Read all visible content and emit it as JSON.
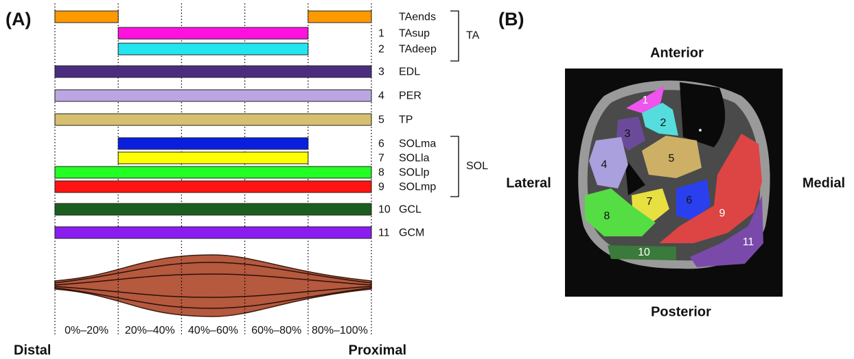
{
  "panel_a": {
    "label": "(A)",
    "rows": [
      {
        "name": "TAends",
        "segments": [
          [
            0,
            20
          ],
          [
            80,
            100
          ]
        ],
        "color": "#ff9900"
      },
      {
        "number": "1",
        "name": "TAsup",
        "segments": [
          [
            20,
            80
          ]
        ],
        "color": "#ff11dd"
      },
      {
        "number": "2",
        "name": "TAdeep",
        "segments": [
          [
            20,
            80
          ]
        ],
        "color": "#22e5f0"
      },
      {
        "number": "3",
        "name": "EDL",
        "segments": [
          [
            0,
            100
          ]
        ],
        "color": "#4b2d7f"
      },
      {
        "number": "4",
        "name": "PER",
        "segments": [
          [
            0,
            100
          ]
        ],
        "color": "#bba6e2"
      },
      {
        "number": "5",
        "name": "TP",
        "segments": [
          [
            0,
            100
          ]
        ],
        "color": "#d6bf6e"
      },
      {
        "number": "6",
        "name": "SOLma",
        "segments": [
          [
            20,
            80
          ]
        ],
        "color": "#0a1ee0"
      },
      {
        "number": "7",
        "name": "SOLla",
        "segments": [
          [
            20,
            80
          ]
        ],
        "color": "#ffff00"
      },
      {
        "number": "8",
        "name": "SOLlp",
        "segments": [
          [
            0,
            100
          ]
        ],
        "color": "#22ff22"
      },
      {
        "number": "9",
        "name": "SOLmp",
        "segments": [
          [
            0,
            100
          ]
        ],
        "color": "#ff1414"
      },
      {
        "number": "10",
        "name": "GCL",
        "segments": [
          [
            0,
            100
          ]
        ],
        "color": "#1b5e20"
      },
      {
        "number": "11",
        "name": "GCM",
        "segments": [
          [
            0,
            100
          ]
        ],
        "color": "#8a1cf0"
      }
    ],
    "groups": [
      "TA",
      "SOL"
    ],
    "gridlines": [
      0,
      20,
      40,
      60,
      80,
      100
    ],
    "axis_labels": [
      "0%–20%",
      "20%–40%",
      "40%–60%",
      "60%–80%",
      "80%–100%"
    ],
    "ends": [
      "Distal",
      "Proximal"
    ]
  },
  "panel_b": {
    "label": "(B)",
    "anterior": "Anterior",
    "posterior": "Posterior",
    "lateral": "Lateral",
    "medial": "Medial",
    "regions": [
      "1",
      "2",
      "3",
      "4",
      "5",
      "6",
      "7",
      "8",
      "9",
      "10",
      "11"
    ]
  }
}
